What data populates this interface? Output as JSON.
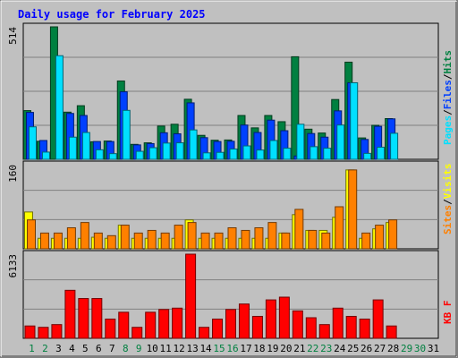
{
  "chart_data": {
    "type": "bar",
    "title": "Daily usage for February 2025",
    "categories": [
      "1",
      "2",
      "3",
      "4",
      "5",
      "6",
      "7",
      "8",
      "9",
      "10",
      "11",
      "12",
      "13",
      "14",
      "15",
      "16",
      "17",
      "18",
      "19",
      "20",
      "21",
      "22",
      "23",
      "24",
      "25",
      "26",
      "27",
      "28",
      "29",
      "30",
      "31"
    ],
    "weekend_days": [
      "1",
      "2",
      "8",
      "9",
      "15",
      "16",
      "22",
      "23",
      "29",
      "30"
    ],
    "inactive_days": [
      "29",
      "30",
      "31"
    ],
    "panels": [
      {
        "id": "hits_files_pages",
        "scale_label": "514",
        "ymax": 514,
        "legend": [
          "Pages",
          "/",
          "Files",
          "/",
          "Hits"
        ],
        "series": [
          {
            "name": "Hits",
            "color": "#008040",
            "values": [
              189,
              70,
              514,
              183,
              208,
              68,
              71,
              304,
              58,
              64,
              129,
              136,
              233,
              93,
              74,
              75,
              170,
              122,
              170,
              146,
              398,
              117,
              102,
              232,
              377,
              83,
              132,
              158,
              0,
              0,
              0
            ]
          },
          {
            "name": "Files",
            "color": "#0040ff",
            "values": [
              182,
              73,
              0,
              178,
              170,
              69,
              69,
              262,
              56,
              61,
              103,
              99,
              219,
              84,
              69,
              70,
              133,
              104,
              152,
              111,
              13,
              100,
              86,
              188,
              297,
              77,
              128,
              157,
              0,
              0,
              0
            ]
          },
          {
            "name": "Pages",
            "color": "#00e0ff",
            "values": [
              126,
              28,
              402,
              86,
              104,
              37,
              22,
              190,
              31,
              45,
              63,
              64,
              114,
              25,
              27,
              40,
              52,
              36,
              73,
              43,
              136,
              49,
              43,
              133,
              297,
              23,
              47,
              101,
              0,
              0,
              0
            ]
          }
        ]
      },
      {
        "id": "visits_sites",
        "scale_label": "160",
        "ymax": 160,
        "legend": [
          "Sites",
          "/",
          "Visits"
        ],
        "series": [
          {
            "name": "Visits",
            "color": "#ffff00",
            "values": [
              70,
              20,
              20,
              20,
              20,
              22,
              20,
              45,
              20,
              20,
              20,
              20,
              55,
              20,
              20,
              20,
              20,
              20,
              20,
              30,
              65,
              35,
              35,
              60,
              150,
              20,
              38,
              50,
              0,
              0,
              0
            ]
          },
          {
            "name": "Sites",
            "color": "#ff8000",
            "values": [
              55,
              30,
              30,
              40,
              50,
              30,
              25,
              45,
              30,
              35,
              30,
              45,
              50,
              30,
              30,
              40,
              35,
              40,
              50,
              30,
              75,
              35,
              30,
              80,
              150,
              30,
              45,
              55,
              0,
              0,
              0
            ]
          }
        ]
      },
      {
        "id": "kbytes",
        "scale_label": "6133",
        "ymax": 6133,
        "legend": [
          "KB F"
        ],
        "series": [
          {
            "name": "KB F",
            "color": "#ff0000",
            "values": [
              900,
              800,
              1000,
              3500,
              2900,
              2900,
              1400,
              1900,
              800,
              1900,
              2100,
              2200,
              6133,
              800,
              1400,
              2100,
              2500,
              1600,
              2800,
              3000,
              2000,
              1500,
              1000,
              2200,
              1600,
              1400,
              2800,
              900,
              0,
              0,
              0
            ]
          }
        ]
      }
    ]
  }
}
